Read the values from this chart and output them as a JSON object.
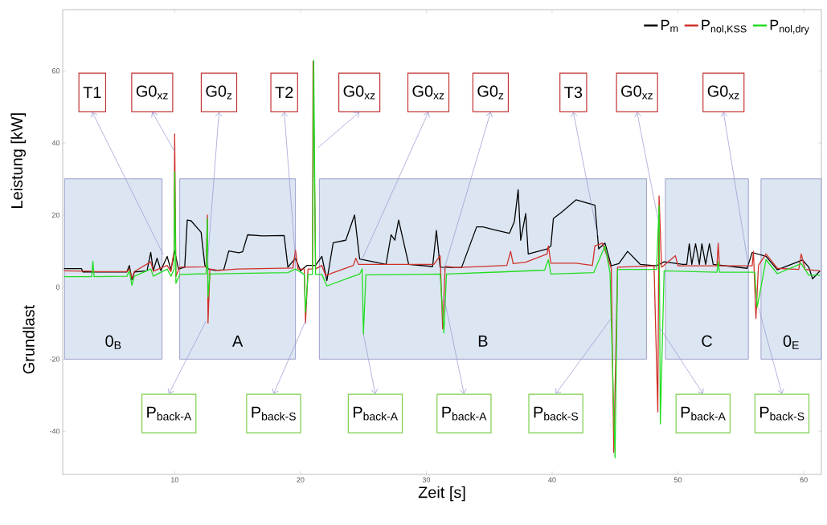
{
  "chart_data": {
    "type": "line",
    "xlabel": "Zeit [s]",
    "ylabel": "Leistung [kW]",
    "xlim": [
      1.1,
      61.4
    ],
    "ylim": [
      -52,
      77
    ],
    "xticks": [
      10,
      20,
      30,
      40,
      50,
      60
    ],
    "yticks": [
      -40,
      -20,
      0,
      20,
      40,
      60
    ],
    "legend": "top right",
    "series": [
      {
        "name": "P$_{m}$",
        "color": "#000000",
        "x": [
          1.2,
          2.6,
          2.7,
          6.2,
          6.4,
          6.6,
          6.8,
          7.8,
          8.1,
          8.3,
          8.6,
          8.9,
          9.4,
          9.7,
          10.0,
          10.3,
          10.8,
          11.0,
          11.3,
          12.1,
          12.4,
          12.7,
          13.2,
          13.9,
          14.3,
          15.1,
          15.4,
          15.8,
          17.0,
          18.7,
          19.0,
          19.6,
          20.0,
          20.5,
          21.0,
          21.2,
          21.7,
          22.1,
          22.6,
          23.6,
          24.3,
          24.7,
          26.8,
          27.2,
          27.5,
          27.8,
          28.6,
          30.5,
          30.8,
          31.1,
          32.8,
          34.0,
          34.5,
          35.3,
          36.6,
          37.0,
          37.3,
          37.5,
          37.9,
          38.1,
          39.6,
          39.9,
          40.1,
          40.8,
          41.9,
          43.4,
          43.7,
          44.2,
          44.7,
          45.3,
          46.0,
          47.0,
          48.3,
          48.5,
          48.9,
          50.4,
          50.7,
          50.9,
          51.1,
          51.4,
          51.7,
          51.9,
          52.2,
          52.5,
          52.8,
          53.4,
          55.5,
          55.9,
          57.0,
          57.9,
          59.9,
          60.4,
          60.7,
          61.3
        ],
        "values": [
          5.1,
          5.1,
          4.2,
          4.2,
          6,
          2,
          4.2,
          4.5,
          9.6,
          4.5,
          8,
          4.6,
          8.5,
          4.8,
          10,
          5,
          5.5,
          18.6,
          18.4,
          15.2,
          6,
          5,
          4.6,
          4.8,
          10,
          9.5,
          9.8,
          14.5,
          14.2,
          14.3,
          5.5,
          8,
          4.5,
          6,
          null,
          6,
          8.5,
          1.8,
          12.3,
          13.0,
          20,
          7.8,
          6.3,
          14.5,
          13,
          18.6,
          6.3,
          5.7,
          15.7,
          5.5,
          5.4,
          16.7,
          16.7,
          16,
          14.9,
          18.2,
          27,
          13,
          20.4,
          9.2,
          10.6,
          11.4,
          19,
          20.9,
          24.2,
          22.7,
          10.6,
          12.2,
          5.9,
          6.5,
          9.9,
          6.3,
          5.9,
          null,
          7,
          6.3,
          6.3,
          12,
          6.3,
          12,
          6.3,
          12,
          6.3,
          12,
          6.3,
          null,
          5.2,
          9.6,
          8.5,
          4.8,
          7.5,
          5.5,
          2.3,
          4.5
        ]
      },
      {
        "name": "P$_{nol,KSS}$",
        "color": "#d0302a",
        "x": [
          1.2,
          3.4,
          3.5,
          3.6,
          6.2,
          6.4,
          6.6,
          6.8,
          8.1,
          8.3,
          9.4,
          9.7,
          9.95,
          10.0,
          10.1,
          10.4,
          12.5,
          12.6,
          12.65,
          12.8,
          13.5,
          15.0,
          19.4,
          19.6,
          19.8,
          20.3,
          20.4,
          20.6,
          20.95,
          21.0,
          21.2,
          21.7,
          22.0,
          24.2,
          24.4,
          24.6,
          30.6,
          31.1,
          31.3,
          31.5,
          32.3,
          36.4,
          36.7,
          36.9,
          37.9,
          39.6,
          39.7,
          39.9,
          41.9,
          43.2,
          43.4,
          44.0,
          44.7,
          44.9,
          45.2,
          48.1,
          48.4,
          48.5,
          48.7,
          49.8,
          50.0,
          53.1,
          53.2,
          53.3,
          55.9,
          56.0,
          56.2,
          56.4,
          57.0,
          57.9,
          59.6,
          59.8,
          60.1,
          61.3
        ],
        "values": [
          4.5,
          4.4,
          null,
          4.3,
          4.3,
          5,
          2.5,
          4.3,
          7,
          4.4,
          6,
          4.3,
          10,
          42.5,
          3,
          5.5,
          5.6,
          20,
          -10,
          5.0,
          4.6,
          5.0,
          5.3,
          10.3,
          5,
          5,
          -10,
          5,
          5,
          62.6,
          5,
          6,
          3.2,
          6,
          8,
          6.3,
          6.3,
          8.7,
          -11.6,
          5.8,
          5.4,
          6,
          9.9,
          6.5,
          6.9,
          9.2,
          11.4,
          6.6,
          6.6,
          6,
          11.4,
          12.2,
          5.2,
          -45.9,
          5.5,
          5.9,
          -34.7,
          25.3,
          5.5,
          8.7,
          5.9,
          5.9,
          12.2,
          5.9,
          5.9,
          9.9,
          -8.7,
          6,
          9.2,
          5.2,
          4.9,
          9.2,
          4.9,
          4.5
        ]
      },
      {
        "name": "P$_{nol,dry}$",
        "color": "#22dd22",
        "x": [
          1.2,
          3.4,
          3.5,
          3.6,
          6.2,
          6.4,
          6.6,
          6.8,
          8.1,
          8.3,
          9.4,
          9.7,
          9.95,
          10.0,
          10.1,
          10.4,
          12.5,
          12.6,
          12.65,
          12.8,
          15.0,
          19.0,
          19.6,
          20.3,
          20.4,
          20.6,
          20.95,
          21.05,
          21.2,
          21.7,
          22.1,
          23.8,
          24.7,
          24.9,
          25.0,
          25.2,
          31.1,
          31.4,
          31.6,
          36.0,
          39.4,
          39.7,
          39.9,
          43.3,
          44.2,
          44.6,
          45.0,
          45.2,
          48.3,
          48.5,
          48.6,
          48.9,
          53.1,
          53.2,
          53.3,
          56.1,
          56.3,
          57.0,
          57.9,
          59.8,
          60.4,
          61.3
        ],
        "values": [
          2.9,
          2.9,
          7.2,
          2.9,
          3,
          4.5,
          0.5,
          3,
          5,
          3,
          5,
          3,
          5,
          32,
          1,
          3.5,
          3.7,
          19,
          -2.7,
          3.6,
          3.8,
          4.0,
          5,
          3.5,
          -7,
          3.5,
          3.5,
          63,
          3.5,
          3.5,
          0.3,
          2.5,
          3.6,
          5,
          -13.1,
          3.4,
          3.6,
          -12.7,
          3.6,
          4.2,
          4.7,
          7.6,
          3.6,
          4.0,
          11.4,
          4.0,
          -47.4,
          4.9,
          4.9,
          22.7,
          -38,
          4.5,
          4.1,
          7,
          4.1,
          4.1,
          -5.6,
          7.6,
          3.7,
          6.5,
          3.3,
          3.3
        ]
      }
    ],
    "bands": [
      {
        "axis": "x",
        "from": 1.25,
        "to": 9.0,
        "label": "0$_{B}$",
        "color": "#dce6f2"
      },
      {
        "axis": "x",
        "from": 10.4,
        "to": 19.6,
        "label": "A",
        "color": "#dce6f2"
      },
      {
        "axis": "x",
        "from": 21.5,
        "to": 47.5,
        "label": "B",
        "color": "#dce6f2"
      },
      {
        "axis": "x",
        "from": 49.0,
        "to": 55.6,
        "label": "C",
        "color": "#dce6f2"
      },
      {
        "axis": "x",
        "from": 56.6,
        "to": 61.4,
        "label": "0$_{E}$",
        "color": "#dce6f2"
      }
    ],
    "annotations": [
      {
        "text": "T1",
        "x": 9.1,
        "y": 9
      },
      {
        "text": "G0$_{xz}$",
        "x": 10.0,
        "y": 37.6
      },
      {
        "text": "G0$_{z}$",
        "x": 12.6,
        "y": 6.3
      },
      {
        "text": "T2",
        "x": 19.6,
        "y": 7.8
      },
      {
        "text": "G0$_{xz}$",
        "x": 21.4,
        "y": 38.7
      },
      {
        "text": "G0$_{xz}$",
        "x": 24.8,
        "y": 7
      },
      {
        "text": "G0$_{z}$",
        "x": 31.4,
        "y": 4.7
      },
      {
        "text": "T3",
        "x": 43.6,
        "y": 14.5
      },
      {
        "text": "G0$_{xz}$",
        "x": 48.4,
        "y": 19
      },
      {
        "text": "G0$_{xz}$",
        "x": 55.6,
        "y": 5.8
      },
      {
        "text": "P$_{back-A}$",
        "x": 12.5,
        "y": -9.4
      },
      {
        "text": "P$_{back-S}$",
        "x": 20.4,
        "y": -9.4
      },
      {
        "text": "P$_{back-A}$",
        "x": 25.0,
        "y": -13
      },
      {
        "text": "P$_{back-A}$",
        "x": 31.4,
        "y": -2.7
      },
      {
        "text": "P$_{back-S}$",
        "x": 44.7,
        "y": -8.7
      },
      {
        "text": "P$_{back-A}$",
        "x": 48.5,
        "y": -11
      },
      {
        "text": "P$_{back-S}$",
        "x": 56.4,
        "y": -5.6
      },
      "Grundlast"
    ]
  }
}
